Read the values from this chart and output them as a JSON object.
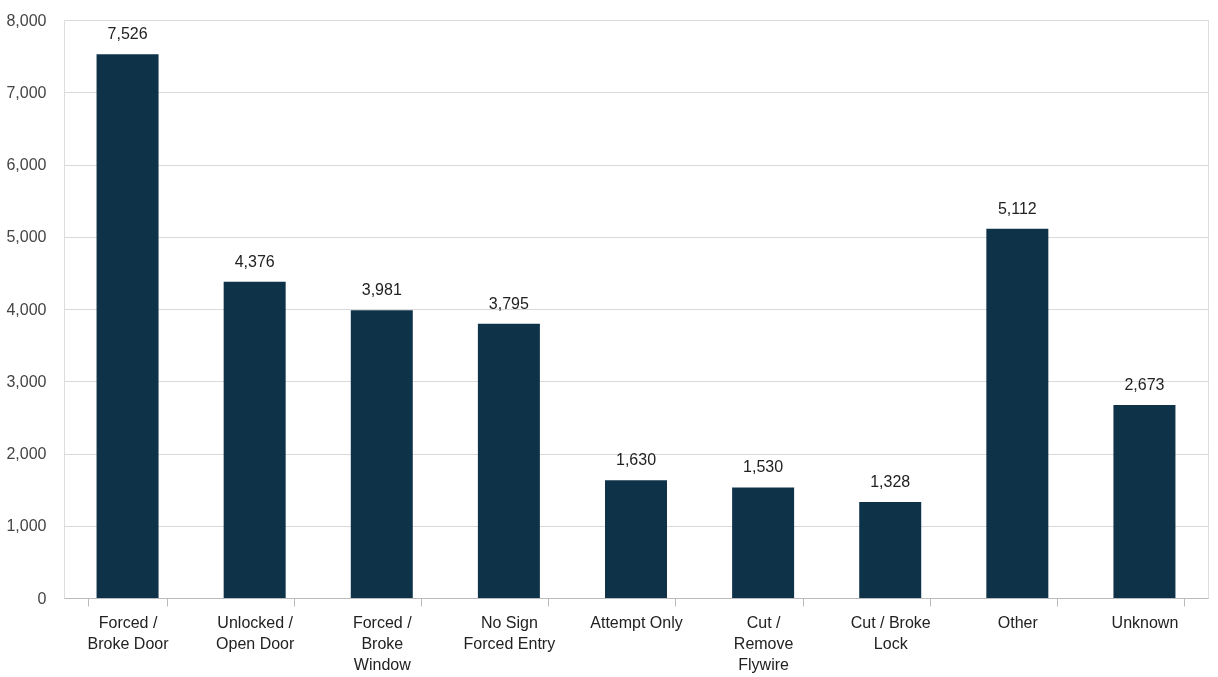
{
  "chart_data": {
    "type": "bar",
    "categories": [
      "Forced /\nBroke Door",
      "Unlocked /\nOpen Door",
      "Forced /\nBroke\nWindow",
      "No Sign\nForced Entry",
      "Attempt Only",
      "Cut /\nRemove\nFlywire",
      "Cut / Broke\nLock",
      "Other",
      "Unknown"
    ],
    "values": [
      7526,
      4376,
      3981,
      3795,
      1630,
      1530,
      1328,
      5112,
      2673
    ],
    "value_labels": [
      "7,526",
      "4,376",
      "3,981",
      "3,795",
      "1,630",
      "1,530",
      "1,328",
      "5,112",
      "2,673"
    ],
    "color": "#0e3349",
    "ylim": [
      0,
      8000
    ],
    "yticks": [
      0,
      {
        "value": 1000,
        "label": "1,000"
      },
      {
        "value": 2000,
        "label": "2,000"
      },
      {
        "value": 3000,
        "label": "3,000"
      },
      {
        "value": 4000,
        "label": "4,000"
      },
      {
        "value": 5000,
        "label": "5,000"
      },
      {
        "value": 6000,
        "label": "6,000"
      },
      {
        "value": 7000,
        "label": "7,000"
      },
      {
        "value": 8000,
        "label": "8,000"
      }
    ],
    "grid": "y"
  }
}
